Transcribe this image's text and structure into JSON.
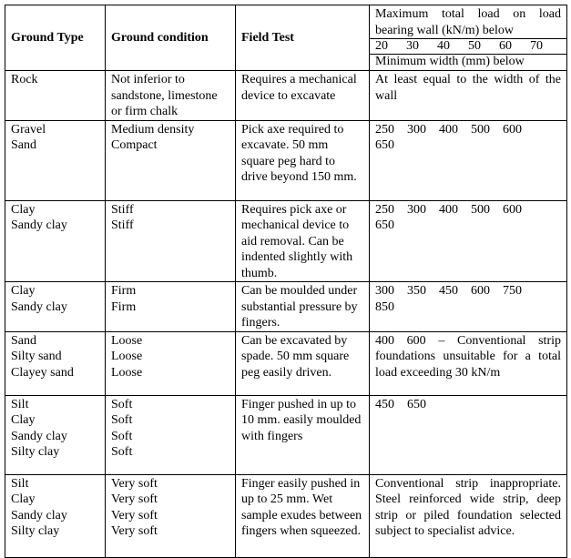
{
  "header": {
    "ground_type": "Ground Type",
    "ground_condition": "Ground condition",
    "field_test": "Field Test",
    "load_title": "Maximum total load on load bearing wall (kN/m) below",
    "loads": [
      20,
      30,
      40,
      50,
      60,
      70
    ],
    "width_title": "Minimum width (mm) below"
  },
  "table": {
    "rows": [
      {
        "types": [
          "Rock"
        ],
        "conditions": [
          "Not inferior to sandstone, limestone or firm chalk"
        ],
        "field_test": "Requires a mechanical device to excavate",
        "width_text": "At least equal to the width of the wall"
      },
      {
        "types": [
          "Gravel",
          "Sand"
        ],
        "conditions": [
          "Medium density",
          "Compact"
        ],
        "field_test": "Pick axe required to excavate. 50 mm square peg hard to drive beyond 150 mm.",
        "widths": [
          250,
          300,
          400,
          500,
          600,
          650
        ]
      },
      {
        "types": [
          "Clay",
          "Sandy clay"
        ],
        "conditions": [
          "Stiff",
          "Stiff"
        ],
        "field_test": "Requires pick axe or mechanical device to aid removal. Can be indented slightly with thumb.",
        "widths": [
          250,
          300,
          400,
          500,
          600,
          650
        ]
      },
      {
        "types": [
          "Clay",
          "Sandy clay"
        ],
        "conditions": [
          "Firm",
          "Firm"
        ],
        "field_test": "Can be moulded under substantial pressure by fingers.",
        "widths": [
          300,
          350,
          450,
          600,
          750,
          850
        ]
      },
      {
        "types": [
          "Sand",
          "Silty sand",
          "Clayey sand"
        ],
        "conditions": [
          "Loose",
          "Loose",
          "Loose"
        ],
        "field_test": "Can be excavated by spade. 50 mm square peg easily driven.",
        "width_text": "400 600 – Conventional strip foundations unsuitable for a total load exceeding 30 kN/m"
      },
      {
        "types": [
          "Silt",
          "Clay",
          "Sandy clay",
          "Silty clay"
        ],
        "conditions": [
          "Soft",
          "Soft",
          "Soft",
          "Soft"
        ],
        "field_test": "Finger pushed in up to 10 mm. easily moulded with fingers",
        "widths": [
          450,
          650
        ]
      },
      {
        "types": [
          "Silt",
          "Clay",
          "Sandy clay",
          "Silty clay"
        ],
        "conditions": [
          "Very soft",
          "Very soft",
          "Very soft",
          "Very soft"
        ],
        "field_test": "Finger easily pushed in up to 25 mm. Wet sample exudes between fingers when squeezed.",
        "width_text": "Conventional strip inappropriate. Steel reinforced wide strip, deep strip or piled foundation selected subject to specialist advice."
      }
    ]
  }
}
